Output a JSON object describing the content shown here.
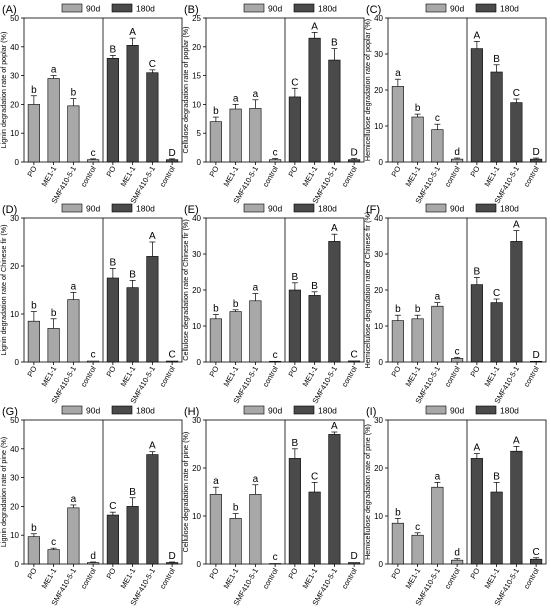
{
  "colors": {
    "light": "#a8a8a8",
    "dark": "#4a4a4a",
    "axis": "#000000"
  },
  "chart_data": [
    {
      "type": "bar",
      "panel_label": "(A)",
      "ylabel": "Lignin degradation rate of poplar (%)",
      "ylim": [
        0,
        50
      ],
      "yticks": [
        0,
        10,
        20,
        30,
        40,
        50
      ],
      "legend": [
        "90d",
        "180d"
      ],
      "legend_position": "top",
      "categories": [
        "PO",
        "ME1-1",
        "SMF410-5-1",
        "control"
      ],
      "series": [
        {
          "name": "90d",
          "values": [
            20,
            29,
            19.5,
            0.8
          ],
          "errors": [
            3,
            1,
            2.5,
            0.3
          ],
          "letters": [
            "b",
            "a",
            "b",
            "c"
          ]
        },
        {
          "name": "180d",
          "values": [
            36,
            40.5,
            31,
            0.8
          ],
          "errors": [
            1,
            2.5,
            1,
            0.3
          ],
          "letters": [
            "B",
            "A",
            "C",
            "D"
          ]
        }
      ]
    },
    {
      "type": "bar",
      "panel_label": "(B)",
      "ylabel": "Cellulose degradation rate of poplar (%)",
      "ylim": [
        0,
        25
      ],
      "yticks": [
        0,
        5,
        10,
        15,
        20,
        25
      ],
      "legend": [
        "90d",
        "180d"
      ],
      "legend_position": "top",
      "categories": [
        "PO",
        "ME1-1",
        "SMF410-5-1",
        "control"
      ],
      "series": [
        {
          "name": "90d",
          "values": [
            7,
            9.2,
            9.3,
            0.4
          ],
          "errors": [
            0.8,
            0.8,
            1.5,
            0.2
          ],
          "letters": [
            "b",
            "a",
            "a",
            "c"
          ]
        },
        {
          "name": "180d",
          "values": [
            11.3,
            21.5,
            17.7,
            0.4
          ],
          "errors": [
            1.5,
            1,
            2,
            0.2
          ],
          "letters": [
            "C",
            "A",
            "B",
            "D"
          ]
        }
      ]
    },
    {
      "type": "bar",
      "panel_label": "(C)",
      "ylabel": "Hemicellulose degradation rate of poplar (%)",
      "ylim": [
        0,
        40
      ],
      "yticks": [
        0,
        10,
        20,
        30,
        40
      ],
      "legend": [
        "90d",
        "180d"
      ],
      "legend_position": "top",
      "categories": [
        "PO",
        "ME1-1",
        "SMF410-5-1",
        "control"
      ],
      "series": [
        {
          "name": "90d",
          "values": [
            21,
            12.5,
            9,
            0.8
          ],
          "errors": [
            2,
            0.8,
            1.5,
            0.3
          ],
          "letters": [
            "a",
            "b",
            "c",
            "d"
          ]
        },
        {
          "name": "180d",
          "values": [
            31.5,
            25,
            16.5,
            0.8
          ],
          "errors": [
            2,
            2,
            1,
            0.3
          ],
          "letters": [
            "A",
            "B",
            "C",
            "D"
          ]
        }
      ]
    },
    {
      "type": "bar",
      "panel_label": "(D)",
      "ylabel": "Lignin degradation rate of Chinese fir (%)",
      "ylim": [
        0,
        30
      ],
      "yticks": [
        0,
        10,
        20,
        30
      ],
      "legend": [
        "90d",
        "180d"
      ],
      "legend_position": "top",
      "categories": [
        "PO",
        "ME1-1",
        "SMF410-5-1",
        "control"
      ],
      "series": [
        {
          "name": "90d",
          "values": [
            8.5,
            7,
            13,
            0.2
          ],
          "errors": [
            2,
            2,
            1.5,
            0.1
          ],
          "letters": [
            "b",
            "b",
            "a",
            "c"
          ]
        },
        {
          "name": "180d",
          "values": [
            17.5,
            15.5,
            22,
            0.2
          ],
          "errors": [
            2,
            1.5,
            3,
            0.1
          ],
          "letters": [
            "B",
            "B",
            "A",
            "C"
          ]
        }
      ]
    },
    {
      "type": "bar",
      "panel_label": "(E)",
      "ylabel": "Cellulose degradation rate of Chinese fir (%)",
      "ylim": [
        0,
        40
      ],
      "yticks": [
        0,
        10,
        20,
        30,
        40
      ],
      "legend": [
        "90d",
        "180d"
      ],
      "legend_position": "top",
      "categories": [
        "PO",
        "ME1-1",
        "SMF410-5-1",
        "control"
      ],
      "series": [
        {
          "name": "90d",
          "values": [
            12,
            14,
            17,
            0.2
          ],
          "errors": [
            1.2,
            0.5,
            2,
            0.1
          ],
          "letters": [
            "b",
            "b",
            "a",
            "c"
          ]
        },
        {
          "name": "180d",
          "values": [
            20,
            18.5,
            33.5,
            0.3
          ],
          "errors": [
            2,
            1,
            2,
            0.1
          ],
          "letters": [
            "B",
            "B",
            "A",
            "C"
          ]
        }
      ]
    },
    {
      "type": "bar",
      "panel_label": "(F)",
      "ylabel": "Hemicellulose degradation rate of Chinese fir (%)",
      "ylim": [
        0,
        40
      ],
      "yticks": [
        0,
        10,
        20,
        30,
        40
      ],
      "legend": [
        "90d",
        "180d"
      ],
      "legend_position": "top",
      "categories": [
        "PO",
        "ME1-1",
        "SMF410-5-1",
        "control"
      ],
      "series": [
        {
          "name": "90d",
          "values": [
            11.5,
            12,
            15.5,
            1
          ],
          "errors": [
            1.5,
            1,
            1,
            0.3
          ],
          "letters": [
            "b",
            "b",
            "a",
            "c"
          ]
        },
        {
          "name": "180d",
          "values": [
            21.5,
            16.5,
            33.5,
            0.2
          ],
          "errors": [
            2,
            1,
            3,
            0.1
          ],
          "letters": [
            "B",
            "C",
            "A",
            "D"
          ]
        }
      ]
    },
    {
      "type": "bar",
      "panel_label": "(G)",
      "ylabel": "Lignin degradation rate of pine (%)",
      "ylim": [
        0,
        50
      ],
      "yticks": [
        0,
        10,
        20,
        30,
        40,
        50
      ],
      "legend": [
        "90d",
        "180d"
      ],
      "legend_position": "top",
      "categories": [
        "PO",
        "ME1-1",
        "SMF410-5-1",
        "control"
      ],
      "series": [
        {
          "name": "90d",
          "values": [
            9.5,
            5,
            19.5,
            0.5
          ],
          "errors": [
            1,
            0.5,
            1,
            0.2
          ],
          "letters": [
            "b",
            "c",
            "a",
            "d"
          ]
        },
        {
          "name": "180d",
          "values": [
            17,
            20,
            38,
            0.5
          ],
          "errors": [
            1,
            3,
            1,
            0.2
          ],
          "letters": [
            "C",
            "B",
            "A",
            "D"
          ]
        }
      ]
    },
    {
      "type": "bar",
      "panel_label": "(H)",
      "ylabel": "Cellulose degradation rate of pine (%)",
      "ylim": [
        0,
        30
      ],
      "yticks": [
        0,
        10,
        20,
        30
      ],
      "legend": [
        "90d",
        "180d"
      ],
      "legend_position": "top",
      "categories": [
        "PO",
        "ME1-1",
        "SMF410-5-1",
        "control"
      ],
      "series": [
        {
          "name": "90d",
          "values": [
            14.5,
            9.5,
            14.5,
            0.1
          ],
          "errors": [
            1.5,
            1,
            2,
            0.1
          ],
          "letters": [
            "a",
            "b",
            "a",
            "c"
          ]
        },
        {
          "name": "180d",
          "values": [
            22,
            15,
            27,
            0.3
          ],
          "errors": [
            2,
            2,
            0.5,
            0.1
          ],
          "letters": [
            "B",
            "C",
            "A",
            "D"
          ]
        }
      ]
    },
    {
      "type": "bar",
      "panel_label": "(I)",
      "ylabel": "Hemicellulose degradation rate of pine (%)",
      "ylim": [
        0,
        30
      ],
      "yticks": [
        0,
        10,
        20,
        30
      ],
      "legend": [
        "90d",
        "180d"
      ],
      "legend_position": "top",
      "categories": [
        "PO",
        "ME1-1",
        "SMF410-5-1",
        "control"
      ],
      "series": [
        {
          "name": "90d",
          "values": [
            8.5,
            6,
            16,
            0.8
          ],
          "errors": [
            1,
            0.5,
            1,
            0.3
          ],
          "letters": [
            "b",
            "c",
            "a",
            "d"
          ]
        },
        {
          "name": "180d",
          "values": [
            22,
            15,
            23.5,
            1
          ],
          "errors": [
            1,
            2,
            1,
            0.3
          ],
          "letters": [
            "A",
            "B",
            "A",
            "C"
          ]
        }
      ]
    }
  ]
}
